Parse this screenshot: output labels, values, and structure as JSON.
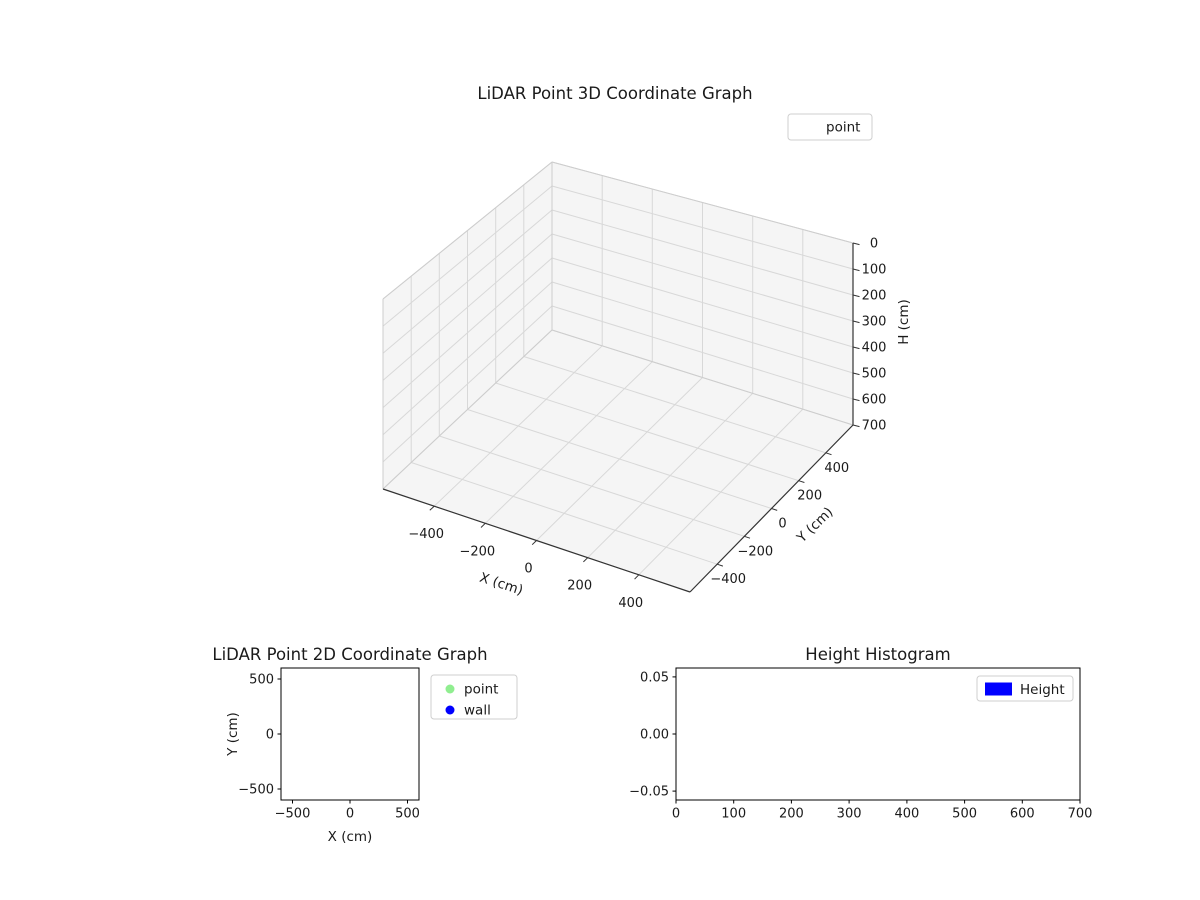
{
  "figure": {
    "background": "#ffffff"
  },
  "chart_data": [
    {
      "id": "lidar-3d",
      "type": "scatter3d",
      "title": "LiDAR Point 3D Coordinate Graph",
      "xlabel": "X (cm)",
      "ylabel": "Y (cm)",
      "zlabel": "H (cm)",
      "x_ticks": [
        -400,
        -200,
        0,
        200,
        400
      ],
      "y_ticks": [
        -400,
        -200,
        0,
        200,
        400
      ],
      "z_ticks": [
        0,
        100,
        200,
        300,
        400,
        500,
        600,
        700
      ],
      "xlim": [
        -600,
        600
      ],
      "ylim": [
        -600,
        600
      ],
      "zlim": [
        0,
        700
      ],
      "z_axis_inverted": true,
      "grid": true,
      "legend": {
        "position": "upper-right-outside",
        "entries": [
          {
            "label": "point",
            "marker": "none"
          }
        ]
      },
      "series": [
        {
          "name": "point",
          "points": []
        }
      ]
    },
    {
      "id": "lidar-2d",
      "type": "scatter",
      "title": "LiDAR Point 2D Coordinate Graph",
      "xlabel": "X (cm)",
      "ylabel": "Y (cm)",
      "x_ticks": [
        -500,
        0,
        500
      ],
      "y_ticks": [
        -500,
        0,
        500
      ],
      "xlim": [
        -600,
        600
      ],
      "ylim": [
        -600,
        600
      ],
      "grid": false,
      "legend": {
        "position": "outside-right",
        "entries": [
          {
            "label": "point",
            "marker": "circle",
            "color": "#90ee90"
          },
          {
            "label": "wall",
            "marker": "circle",
            "color": "#0000ff"
          }
        ]
      },
      "series": [
        {
          "name": "point",
          "points": []
        },
        {
          "name": "wall",
          "points": []
        }
      ]
    },
    {
      "id": "height-histogram",
      "type": "bar",
      "title": "Height Histogram",
      "xlabel": "",
      "ylabel": "",
      "x_ticks": [
        0,
        100,
        200,
        300,
        400,
        500,
        600,
        700
      ],
      "y_ticks": [
        -0.05,
        0,
        0.05
      ],
      "y_tick_decimals": 2,
      "xlim": [
        0,
        700
      ],
      "ylim": [
        -0.05,
        0.05
      ],
      "grid": false,
      "legend": {
        "position": "upper-right",
        "entries": [
          {
            "label": "Height",
            "marker": "rect",
            "color": "#0000ff"
          }
        ]
      },
      "values": []
    }
  ]
}
